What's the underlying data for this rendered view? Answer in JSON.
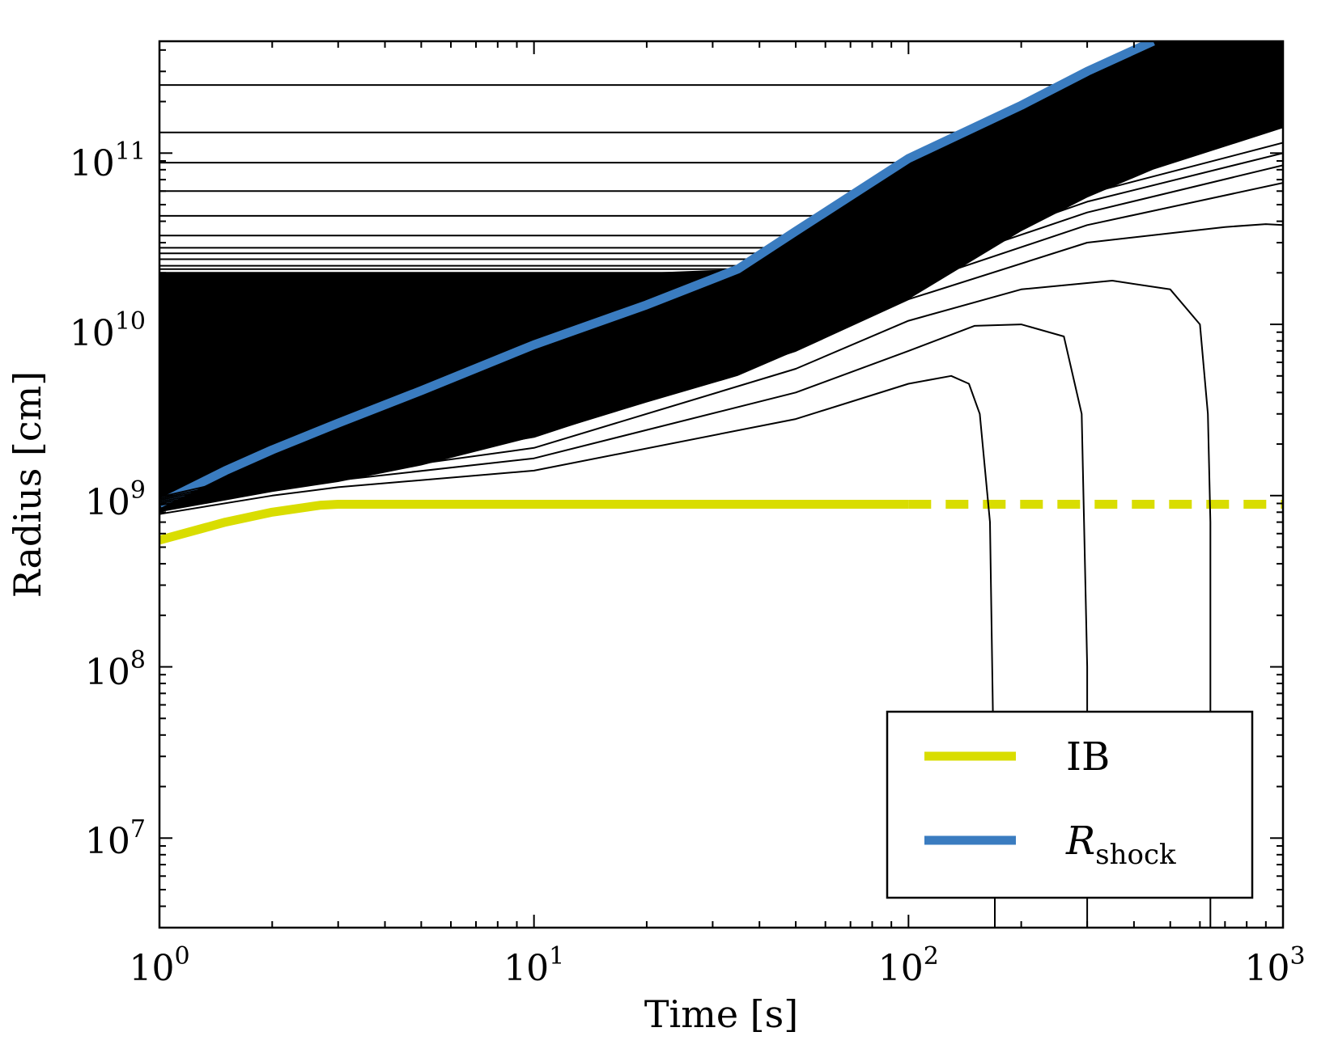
{
  "chart_data": {
    "type": "line",
    "title": "",
    "xlabel": "Time [s]",
    "ylabel": "Radius [cm]",
    "xscale": "log",
    "yscale": "log",
    "xlim": [
      1,
      1000
    ],
    "ylim": [
      3000000,
      450000000000
    ],
    "x_ticks": [
      {
        "base": "10",
        "exp": "0",
        "value": 1
      },
      {
        "base": "10",
        "exp": "1",
        "value": 10
      },
      {
        "base": "10",
        "exp": "2",
        "value": 100
      },
      {
        "base": "10",
        "exp": "3",
        "value": 1000
      }
    ],
    "y_ticks": [
      {
        "base": "10",
        "exp": "7",
        "value": 10000000
      },
      {
        "base": "10",
        "exp": "8",
        "value": 100000000
      },
      {
        "base": "10",
        "exp": "9",
        "value": 1000000000
      },
      {
        "base": "10",
        "exp": "10",
        "value": 10000000000
      },
      {
        "base": "10",
        "exp": "11",
        "value": 100000000000
      }
    ],
    "legend": {
      "position": "lower-right",
      "entries": [
        {
          "label": "IB",
          "color": "#d9dd00"
        },
        {
          "label": "R",
          "subscript": "shock",
          "color": "#3a7cc0"
        }
      ]
    },
    "colors": {
      "shells": "#000000",
      "ib": "#d9dd00",
      "shock": "#3a7cc0"
    },
    "series": [
      {
        "name": "IB",
        "x": [
          1,
          1.5,
          2,
          2.7,
          3,
          5,
          10,
          30,
          100
        ],
        "y": [
          550000000,
          700000000,
          800000000,
          880000000,
          890000000,
          890000000,
          890000000,
          890000000,
          890000000
        ]
      },
      {
        "name": "IB (extrapolated)",
        "style": "dashed",
        "x": [
          100,
          1000
        ],
        "y": [
          890000000,
          890000000
        ]
      },
      {
        "name": "R_shock",
        "x": [
          1,
          1.5,
          2,
          3,
          5,
          10,
          20,
          35,
          50,
          100,
          200,
          300,
          450
        ],
        "y": [
          900000000,
          1400000000,
          1850000000,
          2650000000,
          4100000000,
          7600000000,
          13000000000,
          21000000000,
          35000000000,
          93000000000,
          190000000000,
          300000000000,
          450000000000
        ]
      },
      {
        "name": "shell-fallback-1",
        "x": [
          1,
          2,
          3,
          10,
          50,
          100,
          130,
          145,
          155,
          165,
          170,
          170
        ],
        "y": [
          780000000,
          1000000000,
          1120000000,
          1400000000,
          2800000000,
          4500000000,
          5000000000,
          4500000000,
          3000000000,
          700000000,
          10000000,
          3000000
        ]
      },
      {
        "name": "shell-fallback-2",
        "x": [
          1,
          2,
          3,
          10,
          50,
          100,
          150,
          200,
          260,
          290,
          300,
          300
        ],
        "y": [
          830000000,
          1080000000,
          1230000000,
          1650000000,
          4000000000,
          7000000000,
          9800000000,
          10000000000,
          8500000000,
          3000000000,
          100000000,
          3000000
        ]
      },
      {
        "name": "shell-fallback-3",
        "x": [
          1,
          2,
          3,
          10,
          50,
          100,
          200,
          350,
          500,
          600,
          630,
          640,
          640
        ],
        "y": [
          880000000,
          1150000000,
          1320000000,
          1900000000,
          5500000000,
          10500000000,
          16000000000,
          18000000000,
          16000000000,
          10000000000,
          3000000000,
          700000000,
          3000000
        ]
      },
      {
        "name": "shell-outer-bound",
        "x": [
          1,
          2,
          3,
          10,
          50,
          100,
          300,
          700,
          900,
          1000
        ],
        "y": [
          900000000,
          1200000000,
          1400000000,
          2200000000,
          7000000000,
          14000000000,
          30000000000,
          37000000000,
          38500000000,
          38000000000
        ]
      },
      {
        "name": "shell-expanding-2",
        "x": [
          1,
          3,
          10,
          50,
          100,
          300,
          1000
        ],
        "y": [
          920000000,
          1480000000,
          2500000000,
          8500000000,
          17000000000,
          38000000000,
          67000000000
        ]
      },
      {
        "name": "shell-expanding-3",
        "x": [
          1,
          3,
          10,
          50,
          100,
          300,
          1000
        ],
        "y": [
          940000000,
          1550000000,
          2800000000,
          10000000000,
          20000000000,
          45000000000,
          85000000000
        ]
      },
      {
        "name": "shell-expanding-4",
        "x": [
          1,
          3,
          10,
          50,
          100,
          300,
          1000
        ],
        "y": [
          960000000,
          1620000000,
          3100000000,
          11500000000,
          22500000000,
          52000000000,
          100000000000
        ]
      },
      {
        "name": "shell-expanding-5",
        "x": [
          1,
          3,
          10,
          50,
          100,
          300,
          1000
        ],
        "y": [
          980000000,
          1700000000,
          3400000000,
          13000000000,
          25000000000,
          58000000000,
          115000000000
        ]
      }
    ],
    "shell_envelope": {
      "description": "dense band of Lagrangian shell trajectories",
      "x": [
        1,
        2,
        3,
        5,
        10,
        20,
        35,
        50,
        100,
        200,
        300,
        450,
        1000
      ],
      "upper_y": [
        20000000000,
        20000000000,
        20000000000,
        20000000000,
        20000000000,
        20000000000,
        21000000000,
        35000000000,
        93000000000,
        190000000000,
        300000000000,
        450000000000,
        450000000000
      ],
      "lower_y": [
        800000000,
        1050000000,
        1200000000,
        1500000000,
        2200000000,
        3500000000,
        5000000000,
        7000000000,
        14000000000,
        35000000000,
        55000000000,
        80000000000,
        140000000000
      ]
    },
    "outer_shells": {
      "description": "static outer shells at constant radius until swept up by the shock",
      "y": [
        20000000000,
        21000000000,
        22000000000,
        24000000000,
        26000000000,
        28000000000,
        33000000000,
        43000000000,
        60000000000,
        88000000000,
        132000000000,
        250000000000
      ]
    }
  }
}
